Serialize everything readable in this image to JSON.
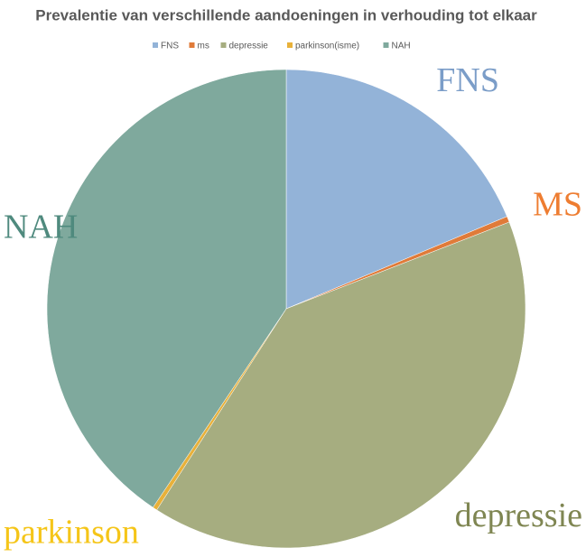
{
  "chart_data": {
    "type": "pie",
    "title": "Prevalentie van verschillende aandoeningen in verhouding tot elkaar",
    "categories": [
      "FNS",
      "ms",
      "depressie",
      "parkinson(isme)",
      "NAH"
    ],
    "values": [
      18.7,
      0.4,
      40,
      0.3,
      40.6
    ],
    "colors": [
      "#93b3d8",
      "#e07b39",
      "#a6ad80",
      "#e8b13a",
      "#7fa99d"
    ],
    "slice_labels": [
      "FNS",
      "MS",
      "depressie",
      "parkinson",
      "NAH"
    ],
    "slice_label_colors": [
      "#7b9dc8",
      "#ee7d31",
      "#7f8652",
      "#f5c518",
      "#4f8a7e"
    ],
    "legend": "top"
  }
}
